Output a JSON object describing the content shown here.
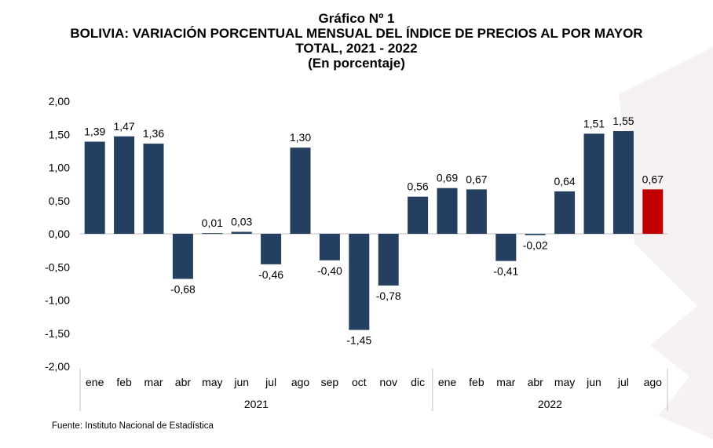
{
  "title_lines": [
    "Gráfico Nº 1",
    "BOLIVIA: VARIACIÓN PORCENTUAL MENSUAL DEL ÍNDICE DE PRECIOS AL POR MAYOR",
    "TOTAL, 2021 - 2022",
    "(En porcentaje)"
  ],
  "source": "Fuente: Instituto Nacional de Estadística",
  "colors": {
    "bar": "#243f60",
    "highlight": "#c00000",
    "axis": "#bfbfbf"
  },
  "chart_data": {
    "type": "bar",
    "ylim": [
      -2,
      2
    ],
    "yticks": [
      "2,00",
      "1,50",
      "1,00",
      "0,50",
      "0,00",
      "-0,50",
      "-1,00",
      "-1,50",
      "-2,00"
    ],
    "categories": [
      "ene",
      "feb",
      "mar",
      "abr",
      "may",
      "jun",
      "jul",
      "ago",
      "sep",
      "oct",
      "nov",
      "dic",
      "ene",
      "feb",
      "mar",
      "abr",
      "may",
      "jun",
      "jul",
      "ago"
    ],
    "groups": [
      {
        "label": "2021",
        "count": 12
      },
      {
        "label": "2022",
        "count": 8
      }
    ],
    "values": [
      1.39,
      1.47,
      1.36,
      -0.68,
      0.01,
      0.03,
      -0.46,
      1.3,
      -0.4,
      -1.45,
      -0.78,
      0.56,
      0.69,
      0.67,
      -0.41,
      -0.02,
      0.64,
      1.51,
      1.55,
      0.67
    ],
    "value_labels": [
      "1,39",
      "1,47",
      "1,36",
      "-0,68",
      "0,01",
      "0,03",
      "-0,46",
      "1,30",
      "-0,40",
      "-1,45",
      "-0,78",
      "0,56",
      "0,69",
      "0,67",
      "-0,41",
      "-0,02",
      "0,64",
      "1,51",
      "1,55",
      "0,67"
    ],
    "highlight_index": 19
  }
}
